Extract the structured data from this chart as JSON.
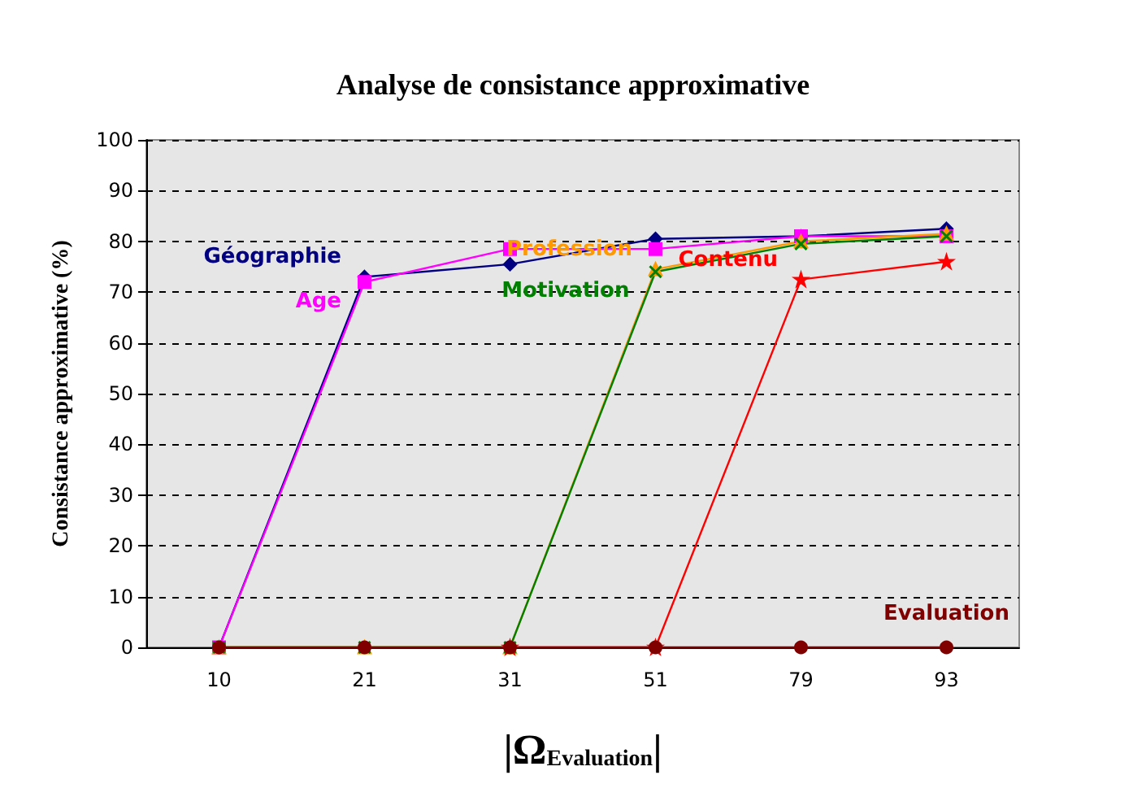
{
  "chart_data": {
    "type": "line",
    "title": "Analyse de consistance approximative",
    "xlabel": "|Ω$_{Evaluation}$|",
    "ylabel": "Consistance approximative (%)",
    "categories": [
      "10",
      "21",
      "31",
      "51",
      "79",
      "93"
    ],
    "ylim": [
      0,
      100
    ],
    "yticks": [
      0,
      10,
      20,
      30,
      40,
      50,
      60,
      70,
      80,
      90,
      100
    ],
    "grid": "y",
    "legend": false,
    "series": [
      {
        "name": "Géographie",
        "color": "#000080",
        "marker": "diamond",
        "values": [
          0,
          73,
          75.5,
          80.5,
          81,
          82.5
        ]
      },
      {
        "name": "Age",
        "color": "#ff00ff",
        "marker": "square",
        "values": [
          0,
          72,
          78.5,
          78.5,
          81,
          81
        ]
      },
      {
        "name": "Profession",
        "color": "#ff9900",
        "marker": "triangle",
        "values": [
          0,
          0,
          0,
          74.5,
          80,
          81.5
        ]
      },
      {
        "name": "Motivation",
        "color": "#008000",
        "marker": "cross",
        "values": [
          0,
          0,
          0,
          74,
          79.5,
          81
        ]
      },
      {
        "name": "Contenu",
        "color": "#ff0000",
        "marker": "star",
        "values": [
          null,
          null,
          0,
          0,
          72.5,
          76
        ]
      },
      {
        "name": "Evaluation",
        "color": "#800000",
        "marker": "circle",
        "values": [
          0,
          0,
          0,
          0,
          0,
          0
        ]
      }
    ]
  }
}
